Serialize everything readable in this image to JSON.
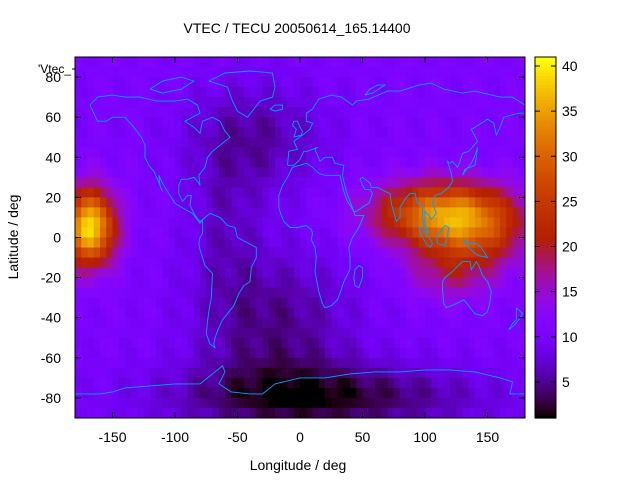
{
  "chart_data": {
    "type": "heatmap",
    "title": "VTEC / TECU 20050614_165.14400",
    "xlabel": "Longitude / deg",
    "ylabel": "Latitude / deg",
    "xlim": [
      -180,
      180
    ],
    "ylim": [
      -90,
      90
    ],
    "x_ticks": [
      -150,
      -100,
      -50,
      0,
      50,
      100,
      150
    ],
    "y_ticks": [
      -80,
      -60,
      -40,
      -20,
      0,
      20,
      40,
      60,
      80
    ],
    "key_label": "'Vtec_",
    "colorbar": {
      "min": 1,
      "max": 41,
      "ticks": [
        5,
        10,
        15,
        20,
        25,
        30,
        35,
        40
      ]
    },
    "grid": false,
    "palette": "black-purple-red-yellow",
    "features": [
      {
        "name": "pacific-hotspot",
        "lon": -168,
        "lat": 5,
        "peak_tecu": 40
      },
      {
        "name": "asia-hotspot",
        "lon": 115,
        "lat": 12,
        "peak_tecu": 33
      },
      {
        "name": "western-pacific-band",
        "lon": 140,
        "lat": 0,
        "peak_tecu": 25
      },
      {
        "name": "south-atlantic-minimum",
        "lon": -20,
        "lat": -45,
        "peak_tecu": 4
      },
      {
        "name": "antarctic-minimum",
        "lon": 20,
        "lat": -80,
        "peak_tecu": 1
      }
    ]
  },
  "colors": {
    "coastline": "#00a0ff"
  }
}
